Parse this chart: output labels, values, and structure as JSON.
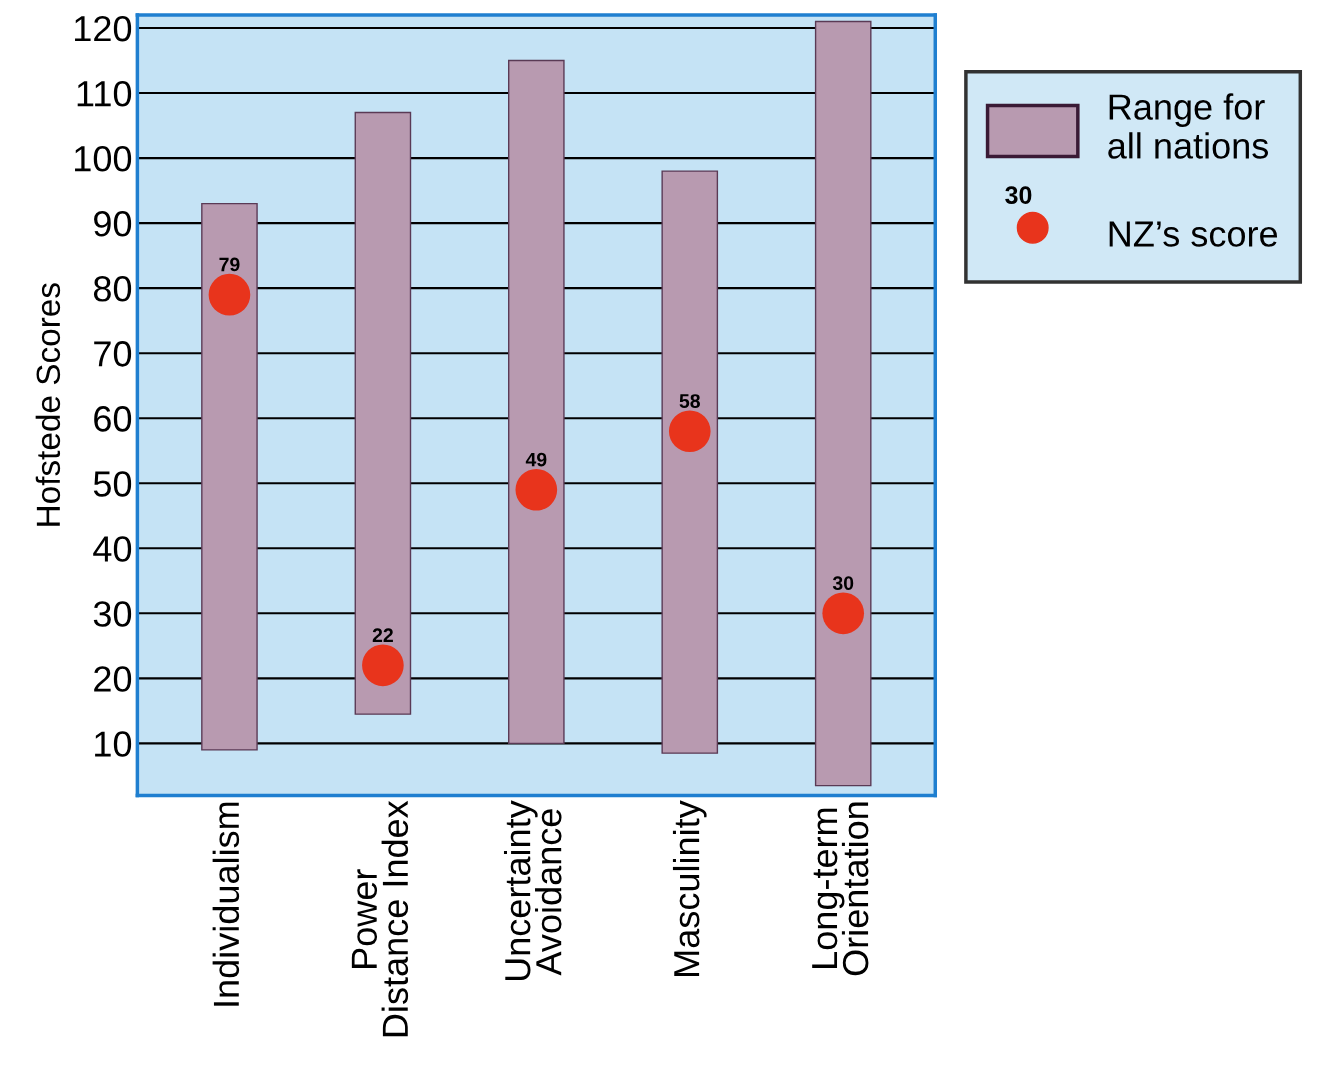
{
  "chart_data": {
    "type": "bar",
    "ylabel": "Hofstede Scores",
    "categories": [
      "Individualism",
      "Power\nDistance Index",
      "Uncertainty\nAvoidance",
      "Masculinity",
      "Long-term\nOrientation"
    ],
    "series": [
      {
        "name": "Range for\nall nations",
        "color": "#b89ab0",
        "base": [
          9,
          14.5,
          10,
          8.5,
          3.5
        ],
        "values": [
          84,
          92.5,
          105,
          89.5,
          117.5
        ]
      },
      {
        "name": "NZ’s score",
        "type": "scatter",
        "color": "#e8341c",
        "values": [
          79,
          22,
          49,
          58,
          30
        ],
        "value_labels": [
          "79",
          "22",
          "49",
          "58",
          "30"
        ]
      }
    ],
    "ylim": [
      2,
      122
    ],
    "yticks": [
      10,
      20,
      30,
      40,
      50,
      60,
      70,
      80,
      90,
      100,
      110,
      120
    ],
    "grid": "y",
    "legend": "top right",
    "annotations": [
      "30"
    ]
  }
}
